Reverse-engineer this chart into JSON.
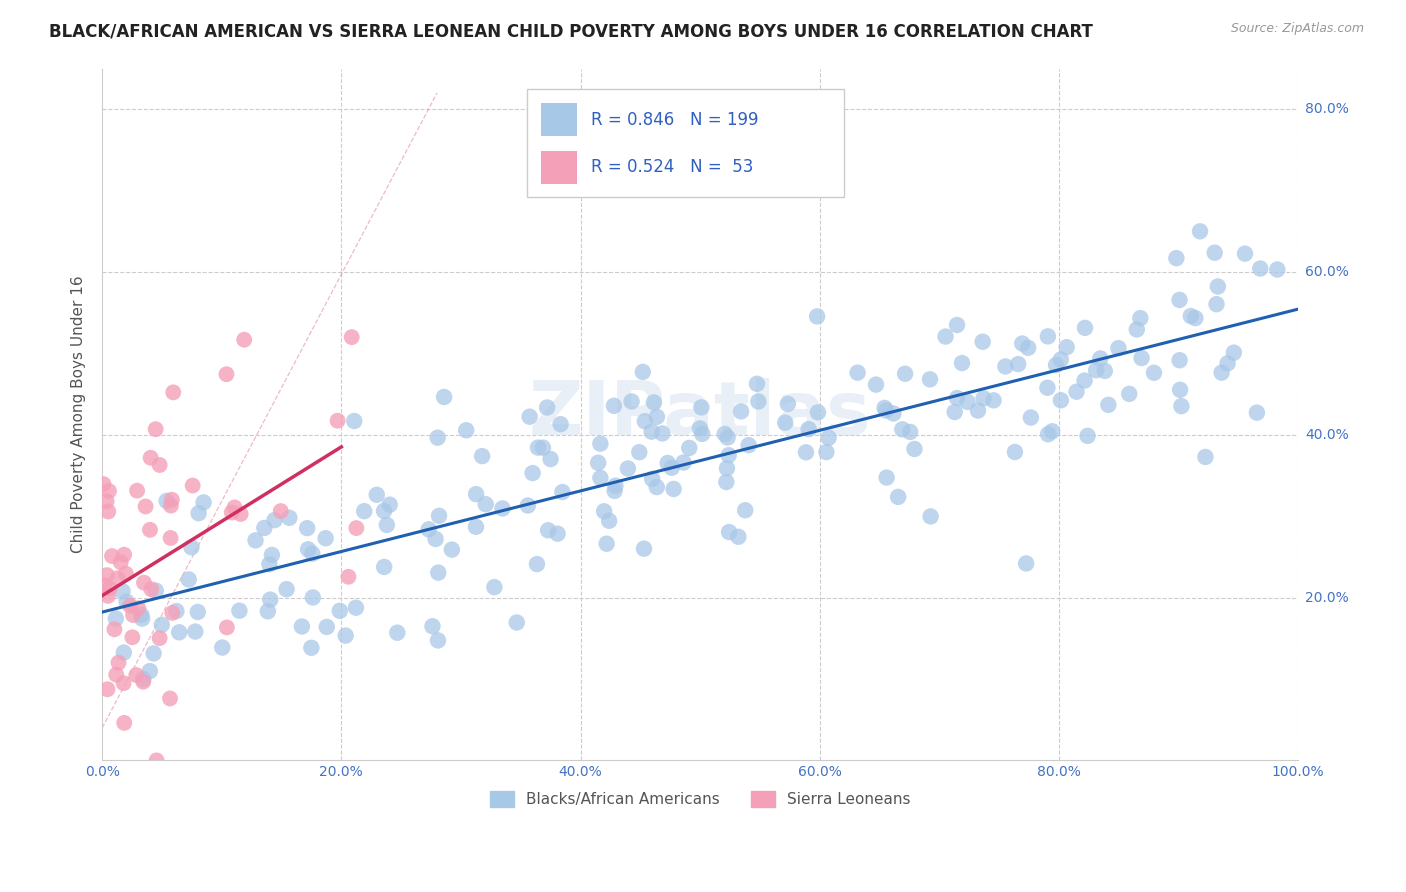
{
  "title": "BLACK/AFRICAN AMERICAN VS SIERRA LEONEAN CHILD POVERTY AMONG BOYS UNDER 16 CORRELATION CHART",
  "source": "Source: ZipAtlas.com",
  "ylabel": "Child Poverty Among Boys Under 16",
  "xlim": [
    0.0,
    1.0
  ],
  "ylim": [
    0.0,
    0.85
  ],
  "xtick_labels": [
    "0.0%",
    "20.0%",
    "40.0%",
    "60.0%",
    "80.0%",
    "100.0%"
  ],
  "xtick_vals": [
    0.0,
    0.2,
    0.4,
    0.6,
    0.8,
    1.0
  ],
  "ytick_labels": [
    "20.0%",
    "40.0%",
    "60.0%",
    "80.0%"
  ],
  "ytick_vals": [
    0.2,
    0.4,
    0.6,
    0.8
  ],
  "blue_color": "#a8c8e8",
  "pink_color": "#f4a0b8",
  "blue_line_color": "#2060b0",
  "pink_line_color": "#d03060",
  "pink_dash_color": "#e080a0",
  "blue_R": 0.846,
  "blue_N": 199,
  "pink_R": 0.524,
  "pink_N": 53,
  "legend_label_blue": "Blacks/African Americans",
  "legend_label_pink": "Sierra Leoneans",
  "watermark": "ZIPatlas",
  "background_color": "#ffffff",
  "grid_color": "#cccccc",
  "title_fontsize": 12,
  "axis_label_fontsize": 11,
  "tick_fontsize": 10,
  "legend_R_N_color": "#3060c0",
  "tick_color": "#4472c4"
}
